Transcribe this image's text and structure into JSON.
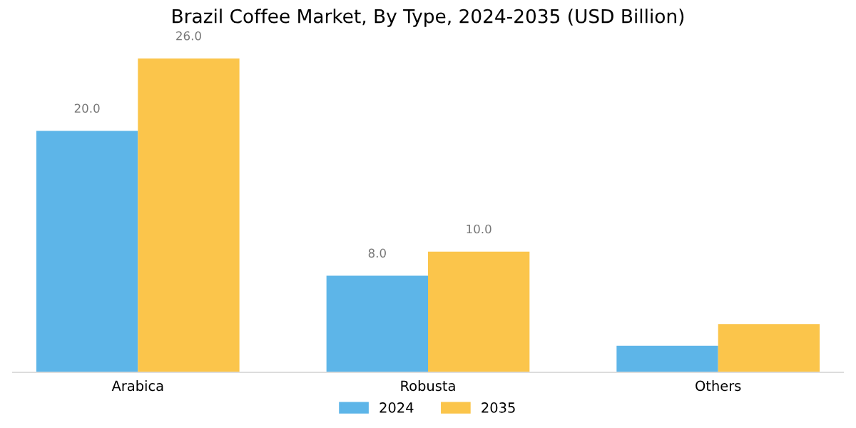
{
  "chart_data": {
    "type": "bar",
    "title": "Brazil Coffee Market, By Type, 2024-2035 (USD Billion)",
    "categories": [
      "Arabica",
      "Robusta",
      "Others"
    ],
    "series": [
      {
        "name": "2024",
        "color": "#5db5e8",
        "values": [
          20.0,
          8.0,
          2.2
        ],
        "value_labels": [
          "20.0",
          "8.0",
          null
        ]
      },
      {
        "name": "2035",
        "color": "#fbc54b",
        "values": [
          26.0,
          10.0,
          4.0
        ],
        "value_labels": [
          "26.0",
          "10.0",
          null
        ]
      }
    ],
    "legend": "bottom",
    "grid": false
  }
}
